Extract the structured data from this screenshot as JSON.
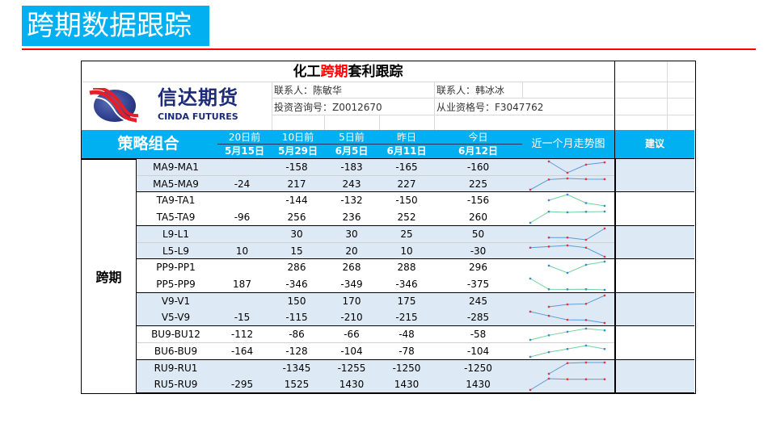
{
  "page_title": "跨期数据跟踪",
  "sheet": {
    "title_pre": "化工",
    "title_red": "跨期",
    "title_post": "套利跟踪",
    "contact1": "联系人：陈敏华",
    "contact2": "联系人：韩冰冰",
    "license1": "投资咨询号：Z0012670",
    "license2": "从业资格号：F3047762",
    "logo_cn": "信达期货",
    "logo_en": "CINDA FUTURES"
  },
  "header": {
    "strategy": "策略组合",
    "cols": [
      {
        "label": "20日前",
        "date": "5月15日"
      },
      {
        "label": "10日前",
        "date": "5月29日"
      },
      {
        "label": "5日前",
        "date": "6月5日"
      },
      {
        "label": "昨日",
        "date": "6月11日"
      },
      {
        "label": "今日",
        "date": "6月12日"
      }
    ],
    "trend": "近一个月走势图",
    "advice": "建议"
  },
  "category": "跨期",
  "colors": {
    "accent": "#00b0f0",
    "red": "#ff0000",
    "band": "#dde9f5",
    "spark_blue": "#5b9bd5",
    "spark_green": "#6fd39a"
  },
  "rows": [
    {
      "name": "MA9-MA1",
      "values": [
        null,
        -158,
        -183,
        -165,
        -160
      ]
    },
    {
      "name": "MA5-MA9",
      "values": [
        -24,
        217,
        243,
        227,
        225
      ]
    },
    {
      "name": "TA9-TA1",
      "values": [
        null,
        -144,
        -132,
        -150,
        -156
      ]
    },
    {
      "name": "TA5-TA9",
      "values": [
        -96,
        256,
        236,
        252,
        260
      ]
    },
    {
      "name": "L9-L1",
      "values": [
        null,
        30,
        30,
        25,
        50
      ]
    },
    {
      "name": "L5-L9",
      "values": [
        10,
        15,
        20,
        10,
        -30
      ]
    },
    {
      "name": "PP9-PP1",
      "values": [
        null,
        286,
        268,
        288,
        296
      ]
    },
    {
      "name": "PP5-PP9",
      "values": [
        187,
        -346,
        -349,
        -346,
        -375
      ]
    },
    {
      "name": "V9-V1",
      "values": [
        null,
        150,
        170,
        175,
        245
      ]
    },
    {
      "name": "V5-V9",
      "values": [
        -15,
        -115,
        -210,
        -215,
        -285
      ]
    },
    {
      "name": "BU9-BU12",
      "values": [
        -112,
        -86,
        -66,
        -48,
        -58
      ]
    },
    {
      "name": "BU6-BU9",
      "values": [
        -164,
        -128,
        -104,
        -78,
        -104
      ]
    },
    {
      "name": "RU9-RU1",
      "values": [
        null,
        -1345,
        -1255,
        -1250,
        -1250
      ]
    },
    {
      "name": "RU5-RU9",
      "values": [
        -295,
        1525,
        1430,
        1430,
        1430
      ]
    }
  ]
}
